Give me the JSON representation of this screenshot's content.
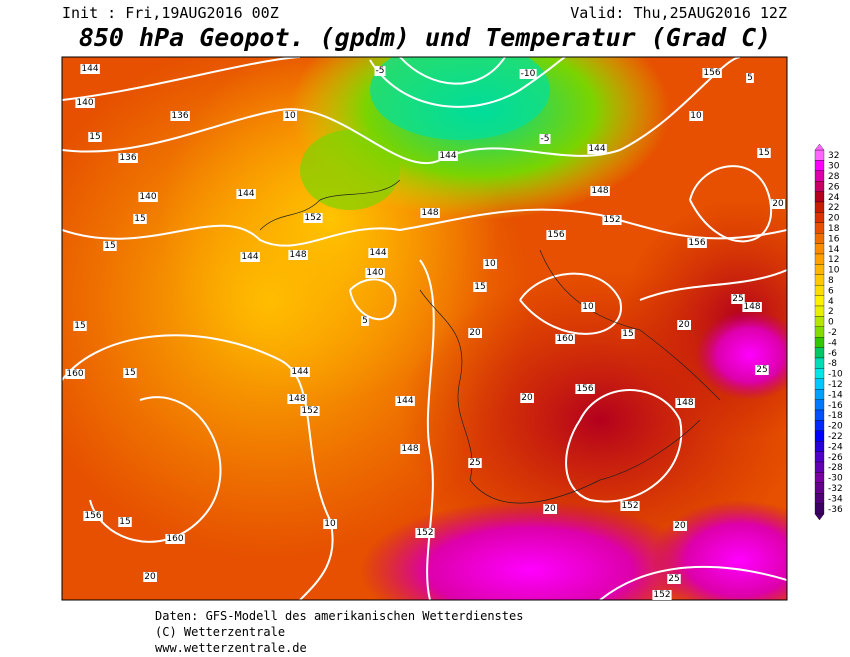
{
  "header": {
    "init": "Init : Fri,19AUG2016 00Z",
    "valid": "Valid: Thu,25AUG2016 12Z",
    "title": "850 hPa Geopot. (gpdm) und Temperatur (Grad C)"
  },
  "map": {
    "labels": [
      "144",
      "140",
      "136",
      "136",
      "140",
      "144",
      "148",
      "144",
      "152",
      "148",
      "144",
      "140",
      "5",
      "10",
      "15",
      "15",
      "15",
      "15",
      "160",
      "15",
      "144",
      "148",
      "152",
      "144",
      "148",
      "152",
      "156",
      "15",
      "160",
      "20",
      "10",
      "-5",
      "-10",
      "144",
      "-5",
      "144",
      "148",
      "152",
      "156",
      "156",
      "156",
      "5",
      "10",
      "15",
      "20",
      "160",
      "156",
      "20",
      "20",
      "25",
      "20",
      "148",
      "152",
      "20",
      "25",
      "152",
      "25",
      "148",
      "25",
      "15",
      "20",
      "10",
      "15",
      "10"
    ]
  },
  "colorbar": {
    "ticks": [
      32,
      30,
      28,
      26,
      24,
      22,
      20,
      18,
      16,
      14,
      12,
      10,
      8,
      6,
      4,
      2,
      0,
      -2,
      -4,
      -6,
      -8,
      -10,
      -12,
      -14,
      -16,
      -18,
      -20,
      -22,
      -24,
      -26,
      -28,
      -30,
      -32,
      -34,
      -36
    ],
    "colors": [
      "#ff66ff",
      "#ff00ff",
      "#dd00aa",
      "#c80064",
      "#b4001e",
      "#c81e00",
      "#dc3200",
      "#e65000",
      "#f06e00",
      "#fa8c00",
      "#ffa000",
      "#ffb400",
      "#ffc800",
      "#ffdc00",
      "#fff000",
      "#e6f000",
      "#b4e600",
      "#82dc00",
      "#32c800",
      "#00c864",
      "#00dcb4",
      "#00e6e6",
      "#00c8ff",
      "#00a0ff",
      "#0078ff",
      "#0050ff",
      "#0028ff",
      "#0000ff",
      "#2800dc",
      "#5000c8",
      "#6400b4",
      "#7800a0",
      "#64008c",
      "#500078",
      "#3c0064"
    ]
  },
  "footer": {
    "line1": "Daten: GFS-Modell des amerikanischen Wetterdienstes",
    "line2": "(C) Wetterzentrale",
    "line3": "www.wetterzentrale.de"
  }
}
